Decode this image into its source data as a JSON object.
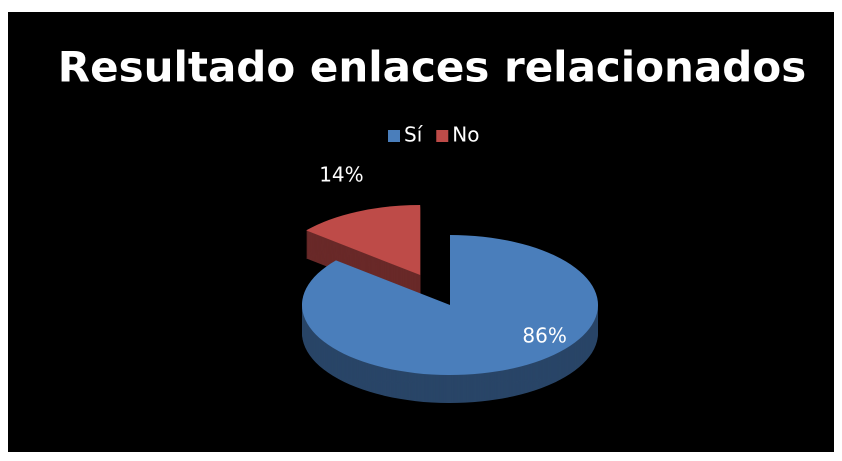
{
  "chart_data": {
    "type": "pie",
    "title": "Resultado enlaces relacionados",
    "categories": [
      "Sí",
      "No"
    ],
    "values": [
      86,
      14
    ],
    "value_labels": [
      "86%",
      "14%"
    ],
    "colors": [
      "#4a7ebb",
      "#be4b48"
    ],
    "legend": "top",
    "exploded": [
      false,
      true
    ]
  }
}
